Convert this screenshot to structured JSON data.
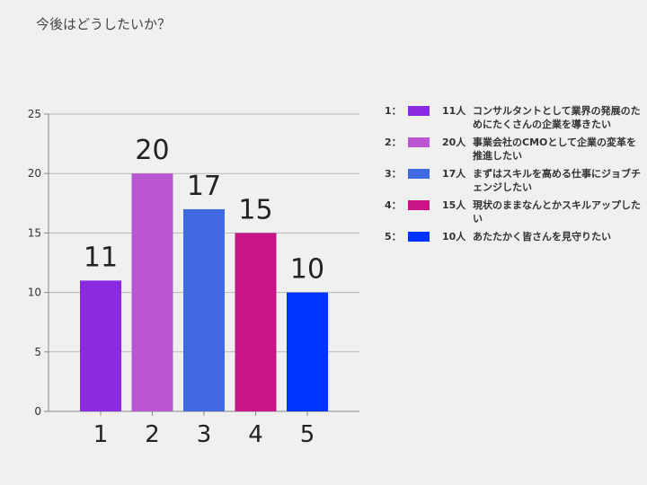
{
  "title": "今後はどうしたいか？",
  "chart_data": {
    "type": "bar",
    "categories": [
      "1",
      "2",
      "3",
      "4",
      "5"
    ],
    "values": [
      11,
      20,
      17,
      15,
      10
    ],
    "colors": [
      "#8a2be2",
      "#ba55d3",
      "#4169e1",
      "#c71585",
      "#0033ff"
    ],
    "data_labels": [
      "11",
      "20",
      "17",
      "15",
      "10"
    ],
    "yticks": [
      "0",
      "5",
      "10",
      "15",
      "20",
      "25"
    ],
    "ylim": [
      0,
      25
    ],
    "grid": true,
    "legend_position": "right"
  },
  "legend": [
    {
      "num": "1：",
      "count": "11人",
      "label": "コンサルタントとして業界の発展のためにたくさんの企業を導きたい",
      "color": "#8a2be2"
    },
    {
      "num": "2：",
      "count": "20人",
      "label": "事業会社のCMOとして企業の変革を推進したい",
      "color": "#ba55d3"
    },
    {
      "num": "3：",
      "count": "17人",
      "label": "まずはスキルを高める仕事にジョブチェンジしたい",
      "color": "#4169e1"
    },
    {
      "num": "4：",
      "count": "15人",
      "label": "現状のままなんとかスキルアップしたい",
      "color": "#c71585"
    },
    {
      "num": "5：",
      "count": "10人",
      "label": "あたたかく皆さんを見守りたい",
      "color": "#0033ff"
    }
  ]
}
